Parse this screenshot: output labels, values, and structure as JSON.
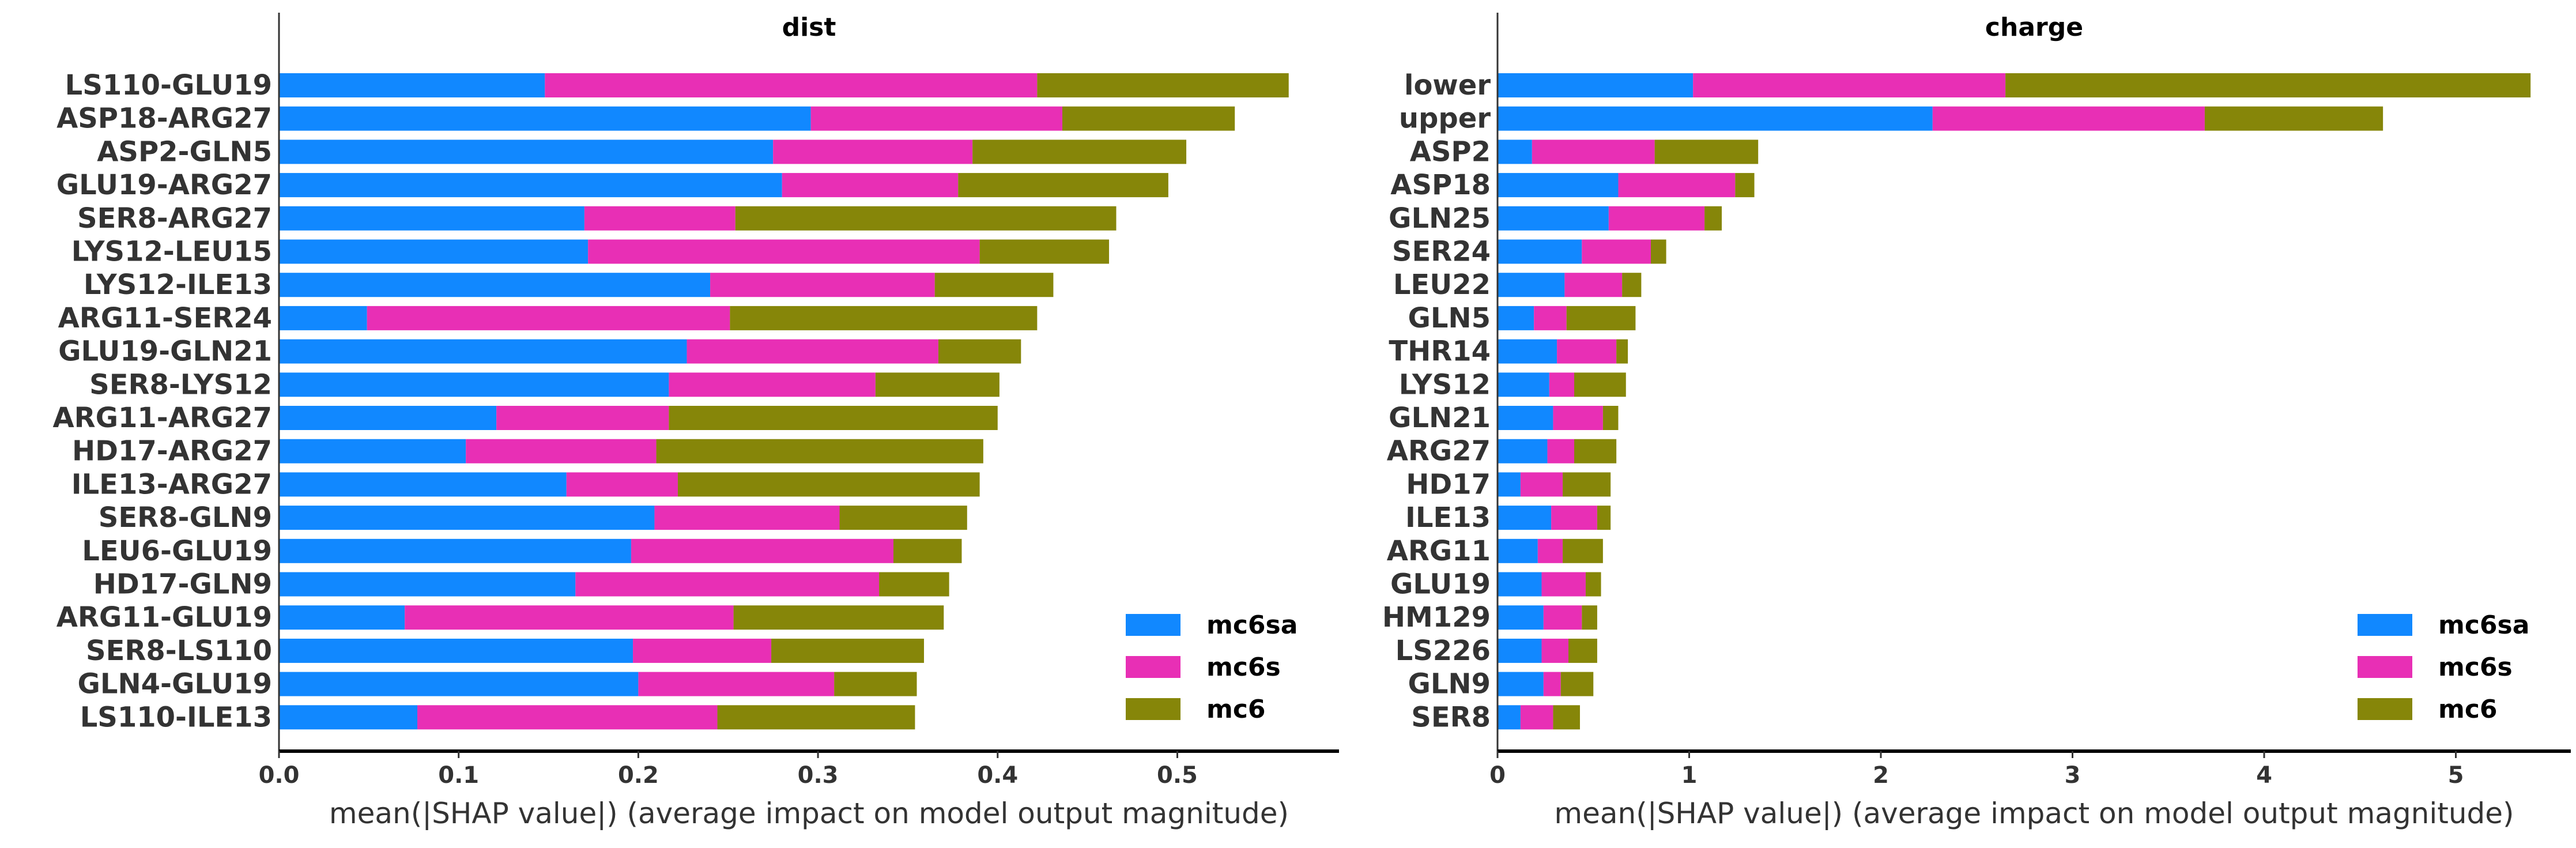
{
  "chart_data": [
    {
      "type": "bar",
      "orientation": "horizontal",
      "stacked": true,
      "title": "dist",
      "xlabel": "mean(|SHAP value|) (average impact on model output magnitude)",
      "ylabel": "",
      "xlim": [
        0,
        0.59
      ],
      "xticks": [
        "0.0",
        "0.1",
        "0.2",
        "0.3",
        "0.4",
        "0.5"
      ],
      "legend_position": "lower-right",
      "categories": [
        "LS110-GLU19",
        "ASP18-ARG27",
        "ASP2-GLN5",
        "GLU19-ARG27",
        "SER8-ARG27",
        "LYS12-LEU15",
        "LYS12-ILE13",
        "ARG11-SER24",
        "GLU19-GLN21",
        "SER8-LYS12",
        "ARG11-ARG27",
        "HD17-ARG27",
        "ILE13-ARG27",
        "SER8-GLN9",
        "LEU6-GLU19",
        "HD17-GLN9",
        "ARG11-GLU19",
        "SER8-LS110",
        "GLN4-GLU19",
        "LS110-ILE13"
      ],
      "series": [
        {
          "name": "mc6sa",
          "color": "#1188ff",
          "values": [
            0.148,
            0.296,
            0.275,
            0.28,
            0.17,
            0.172,
            0.24,
            0.049,
            0.227,
            0.217,
            0.121,
            0.104,
            0.16,
            0.209,
            0.196,
            0.165,
            0.07,
            0.197,
            0.2,
            0.077
          ]
        },
        {
          "name": "mc6s",
          "color": "#e82fb5",
          "values": [
            0.274,
            0.14,
            0.111,
            0.098,
            0.084,
            0.218,
            0.125,
            0.202,
            0.14,
            0.115,
            0.096,
            0.106,
            0.062,
            0.103,
            0.146,
            0.169,
            0.183,
            0.077,
            0.109,
            0.167
          ]
        },
        {
          "name": "mc6",
          "color": "#868609",
          "values": [
            0.14,
            0.096,
            0.119,
            0.117,
            0.212,
            0.072,
            0.066,
            0.171,
            0.046,
            0.069,
            0.183,
            0.182,
            0.168,
            0.071,
            0.038,
            0.039,
            0.117,
            0.085,
            0.046,
            0.11
          ]
        }
      ]
    },
    {
      "type": "bar",
      "orientation": "horizontal",
      "stacked": true,
      "title": "charge",
      "xlabel": "mean(|SHAP value|) (average impact on model output magnitude)",
      "ylabel": "",
      "xlim": [
        0,
        5.6
      ],
      "xticks": [
        "0",
        "1",
        "2",
        "3",
        "4",
        "5"
      ],
      "legend_position": "lower-right",
      "categories": [
        "lower",
        "upper",
        "ASP2",
        "ASP18",
        "GLN25",
        "SER24",
        "LEU22",
        "GLN5",
        "THR14",
        "LYS12",
        "GLN21",
        "ARG27",
        "HD17",
        "ILE13",
        "ARG11",
        "GLU19",
        "HM129",
        "LS226",
        "GLN9",
        "SER8"
      ],
      "series": [
        {
          "name": "mc6sa",
          "color": "#1188ff",
          "values": [
            1.02,
            2.27,
            0.18,
            0.63,
            0.58,
            0.44,
            0.35,
            0.19,
            0.31,
            0.27,
            0.29,
            0.26,
            0.12,
            0.28,
            0.21,
            0.23,
            0.24,
            0.23,
            0.24,
            0.12
          ]
        },
        {
          "name": "mc6s",
          "color": "#e82fb5",
          "values": [
            1.63,
            1.42,
            0.64,
            0.61,
            0.5,
            0.36,
            0.3,
            0.17,
            0.31,
            0.13,
            0.26,
            0.14,
            0.22,
            0.24,
            0.13,
            0.23,
            0.2,
            0.14,
            0.09,
            0.17
          ]
        },
        {
          "name": "mc6",
          "color": "#868609",
          "values": [
            2.74,
            0.93,
            0.54,
            0.1,
            0.09,
            0.08,
            0.1,
            0.36,
            0.06,
            0.27,
            0.08,
            0.22,
            0.25,
            0.07,
            0.21,
            0.08,
            0.08,
            0.15,
            0.17,
            0.14
          ]
        }
      ]
    }
  ]
}
